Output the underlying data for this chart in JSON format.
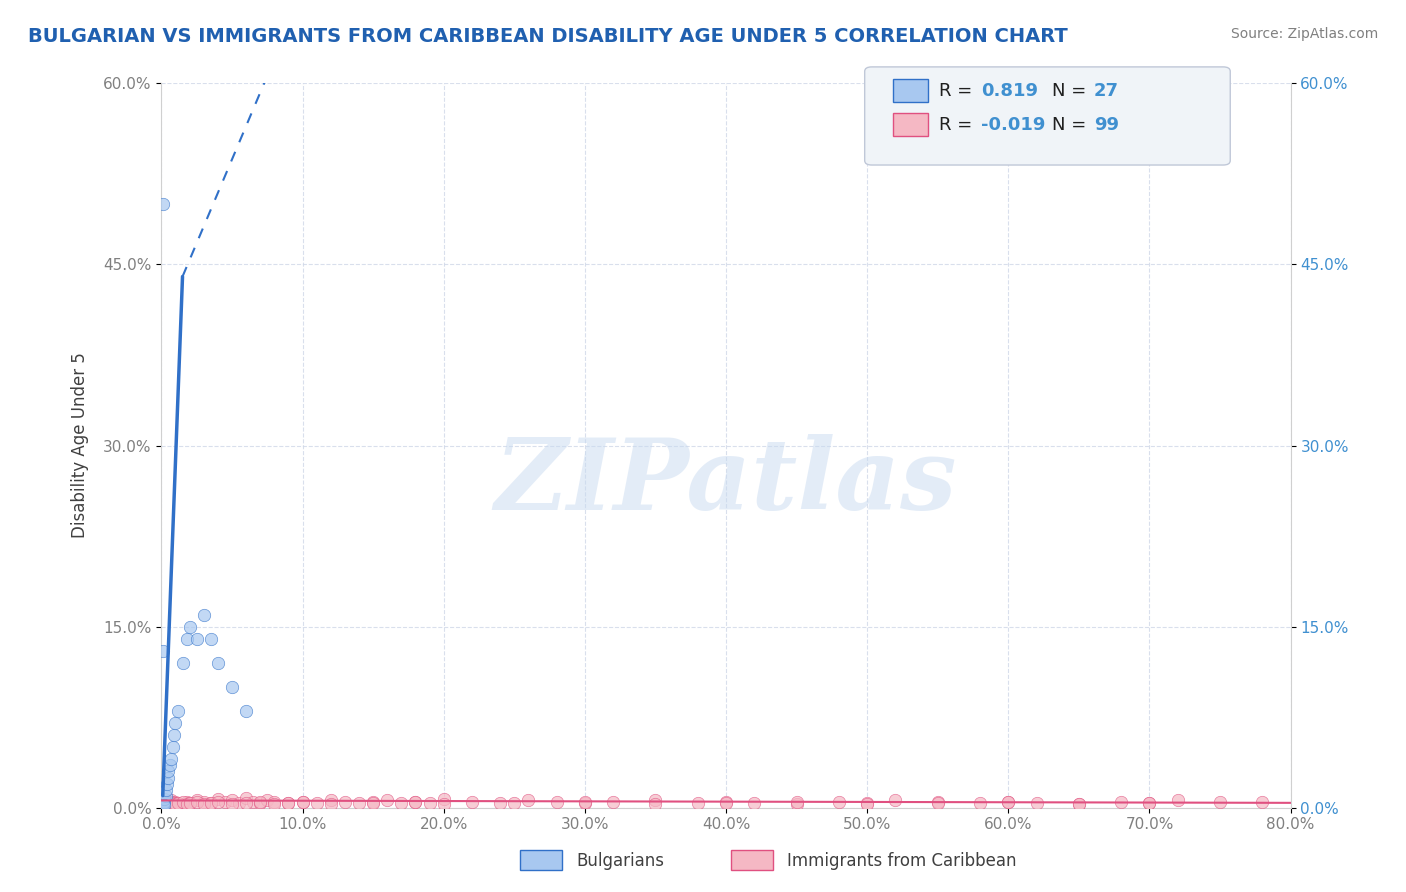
{
  "title": "BULGARIAN VS IMMIGRANTS FROM CARIBBEAN DISABILITY AGE UNDER 5 CORRELATION CHART",
  "source": "Source: ZipAtlas.com",
  "xlabel": "",
  "ylabel": "Disability Age Under 5",
  "xlim": [
    0.0,
    0.8
  ],
  "ylim": [
    0.0,
    0.6
  ],
  "xticks": [
    0.0,
    0.1,
    0.2,
    0.3,
    0.4,
    0.5,
    0.6,
    0.7,
    0.8
  ],
  "xticklabels": [
    "0.0%",
    "10.0%",
    "20.0%",
    "30.0%",
    "40.0%",
    "50.0%",
    "60.0%",
    "70.0%",
    "80.0%"
  ],
  "yticks": [
    0.0,
    0.15,
    0.3,
    0.45,
    0.6
  ],
  "yticklabels": [
    "0.0%",
    "15.0%",
    "30.0%",
    "45.0%",
    "60.0%"
  ],
  "legend_r1": "R =  0.819",
  "legend_n1": "N = 27",
  "legend_r2": "R = -0.019",
  "legend_n2": "N = 99",
  "blue_color": "#a8c8f0",
  "pink_color": "#f5b8c4",
  "trend_blue": "#3070c8",
  "trend_pink": "#e05080",
  "watermark": "ZIPatlas",
  "watermark_color": "#c8daf0",
  "blue_dots_x": [
    0.001,
    0.001,
    0.002,
    0.002,
    0.003,
    0.003,
    0.004,
    0.005,
    0.005,
    0.006,
    0.007,
    0.008,
    0.009,
    0.01,
    0.012,
    0.015,
    0.018,
    0.02,
    0.025,
    0.03,
    0.035,
    0.04,
    0.05,
    0.06,
    0.001,
    0.001,
    0.002
  ],
  "blue_dots_y": [
    0.001,
    0.003,
    0.005,
    0.007,
    0.01,
    0.015,
    0.02,
    0.025,
    0.03,
    0.035,
    0.04,
    0.05,
    0.06,
    0.07,
    0.08,
    0.12,
    0.14,
    0.15,
    0.14,
    0.16,
    0.14,
    0.12,
    0.1,
    0.08,
    0.13,
    0.5,
    0.002
  ],
  "blue_sizes": [
    80,
    80,
    80,
    80,
    80,
    80,
    80,
    80,
    80,
    80,
    80,
    80,
    80,
    80,
    80,
    80,
    80,
    80,
    80,
    80,
    80,
    80,
    80,
    80,
    100,
    120,
    80
  ],
  "pink_dots_x": [
    0.001,
    0.002,
    0.003,
    0.004,
    0.005,
    0.006,
    0.007,
    0.008,
    0.01,
    0.012,
    0.015,
    0.018,
    0.02,
    0.025,
    0.03,
    0.035,
    0.04,
    0.045,
    0.05,
    0.055,
    0.06,
    0.065,
    0.07,
    0.075,
    0.08,
    0.09,
    0.1,
    0.11,
    0.12,
    0.13,
    0.14,
    0.15,
    0.16,
    0.17,
    0.18,
    0.19,
    0.2,
    0.22,
    0.24,
    0.26,
    0.28,
    0.3,
    0.32,
    0.35,
    0.38,
    0.4,
    0.42,
    0.45,
    0.48,
    0.5,
    0.52,
    0.55,
    0.58,
    0.6,
    0.62,
    0.65,
    0.68,
    0.7,
    0.72,
    0.75,
    0.001,
    0.002,
    0.003,
    0.004,
    0.005,
    0.006,
    0.007,
    0.008,
    0.009,
    0.01,
    0.012,
    0.015,
    0.018,
    0.02,
    0.025,
    0.03,
    0.035,
    0.04,
    0.05,
    0.06,
    0.07,
    0.08,
    0.09,
    0.1,
    0.12,
    0.15,
    0.18,
    0.2,
    0.25,
    0.3,
    0.35,
    0.4,
    0.45,
    0.5,
    0.55,
    0.6,
    0.65,
    0.7,
    0.78
  ],
  "pink_dots_y": [
    0.003,
    0.004,
    0.005,
    0.003,
    0.004,
    0.005,
    0.006,
    0.004,
    0.005,
    0.004,
    0.003,
    0.005,
    0.004,
    0.006,
    0.005,
    0.004,
    0.007,
    0.005,
    0.006,
    0.004,
    0.008,
    0.005,
    0.004,
    0.006,
    0.005,
    0.004,
    0.005,
    0.004,
    0.006,
    0.005,
    0.004,
    0.005,
    0.006,
    0.004,
    0.005,
    0.004,
    0.007,
    0.005,
    0.004,
    0.006,
    0.005,
    0.004,
    0.005,
    0.006,
    0.004,
    0.005,
    0.004,
    0.003,
    0.005,
    0.004,
    0.006,
    0.005,
    0.004,
    0.005,
    0.004,
    0.003,
    0.005,
    0.004,
    0.006,
    0.005,
    0.002,
    0.003,
    0.004,
    0.005,
    0.003,
    0.004,
    0.005,
    0.003,
    0.004,
    0.003,
    0.004,
    0.005,
    0.003,
    0.004,
    0.005,
    0.003,
    0.004,
    0.005,
    0.003,
    0.004,
    0.005,
    0.003,
    0.004,
    0.005,
    0.003,
    0.004,
    0.005,
    0.003,
    0.004,
    0.005,
    0.003,
    0.004,
    0.005,
    0.003,
    0.004,
    0.005,
    0.003,
    0.004,
    0.005
  ],
  "pink_sizes": [
    80,
    80,
    80,
    80,
    80,
    80,
    80,
    80,
    80,
    80,
    80,
    80,
    80,
    80,
    80,
    80,
    80,
    80,
    80,
    80,
    80,
    80,
    80,
    80,
    80,
    80,
    80,
    80,
    80,
    80,
    80,
    80,
    80,
    80,
    80,
    80,
    80,
    80,
    80,
    80,
    80,
    80,
    80,
    80,
    80,
    80,
    80,
    80,
    80,
    80,
    80,
    80,
    80,
    80,
    80,
    80,
    80,
    80,
    80,
    80,
    80,
    80,
    80,
    80,
    80,
    80,
    80,
    80,
    80,
    80,
    80,
    80,
    80,
    80,
    80,
    80,
    80,
    80,
    80,
    80,
    80,
    80,
    80,
    80,
    80,
    80,
    80,
    80,
    80,
    80,
    80,
    80,
    80,
    80,
    80,
    80,
    80,
    80,
    80
  ],
  "bg_color": "#ffffff",
  "grid_color": "#d0d8e8",
  "title_color": "#2060b0",
  "axis_label_color": "#404040",
  "tick_color": "#808080",
  "right_tick_color": "#4090d0",
  "legend_box_color": "#f0f4f8"
}
